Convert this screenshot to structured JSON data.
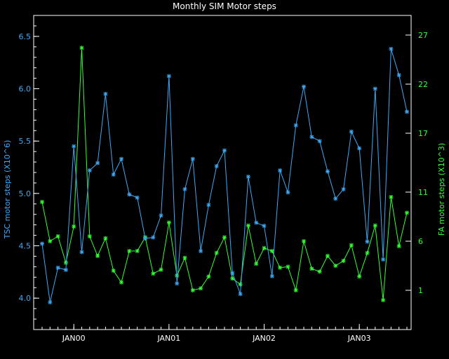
{
  "chart_data": {
    "type": "line",
    "title": "Monthly SIM Motor steps",
    "ylabel_left": "TSC motor steps (X10^6)",
    "ylabel_right": "FA motor steps (X10^3)",
    "xlabel": "",
    "x_ticks": [
      "JAN00",
      "JAN01",
      "JAN02",
      "JAN03"
    ],
    "ylim_left": [
      3.7,
      6.7
    ],
    "ylim_right": [
      -3,
      29
    ],
    "yticks_left": [
      "4.0",
      "4.5",
      "5.0",
      "5.5",
      "6.0",
      "6.5"
    ],
    "yticks_right": [
      "1",
      "6",
      "11",
      "17",
      "22",
      "27"
    ],
    "colors": {
      "tsc": "#3fa9f5",
      "fa": "#33ff33",
      "frame": "#ffffff"
    },
    "series": [
      {
        "name": "TSC",
        "axis": "left",
        "values": [
          4.52,
          3.96,
          4.29,
          4.27,
          5.45,
          4.44,
          5.22,
          5.29,
          5.95,
          5.18,
          5.33,
          4.99,
          4.96,
          4.57,
          4.58,
          4.79,
          6.12,
          4.14,
          5.04,
          5.33,
          4.45,
          4.89,
          5.26,
          5.41,
          4.24,
          4.04,
          5.16,
          4.72,
          4.69,
          4.21,
          5.22,
          5.01,
          5.65,
          6.02,
          5.54,
          5.5,
          5.21,
          4.95,
          5.04,
          5.59,
          5.43,
          4.54,
          6.0,
          4.37,
          6.38,
          6.13,
          5.78
        ]
      },
      {
        "name": "FA",
        "axis": "right",
        "values": [
          10.0,
          6.0,
          6.5,
          3.8,
          7.5,
          25.7,
          6.5,
          4.5,
          6.3,
          3.0,
          1.8,
          5.0,
          5.0,
          6.4,
          2.7,
          3.1,
          7.9,
          2.5,
          4.3,
          1.0,
          1.2,
          2.4,
          4.8,
          6.4,
          2.2,
          1.6,
          7.6,
          3.7,
          5.3,
          5.0,
          3.3,
          3.4,
          1.0,
          6.0,
          3.2,
          2.9,
          4.5,
          3.5,
          4.0,
          5.6,
          2.4,
          4.8,
          7.6,
          0.0,
          10.5,
          5.5,
          8.9
        ]
      }
    ]
  }
}
